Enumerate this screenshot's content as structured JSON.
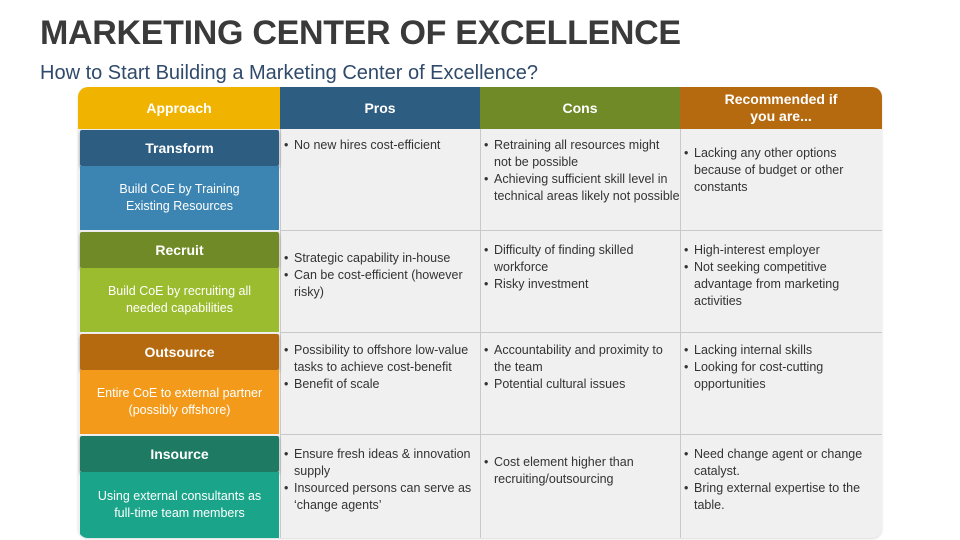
{
  "title": "MARKETING CENTER OF EXCELLENCE",
  "subtitle": "How to Start Building a Marketing Center of Excellence?",
  "headers": {
    "approach": "Approach",
    "pros": "Pros",
    "cons": "Cons",
    "recommended_line1": "Recommended if",
    "recommended_line2": "you are..."
  },
  "rows": [
    {
      "name": "Transform",
      "desc_line1": "Build CoE by Training",
      "desc_line2": "Existing Resources",
      "pros": [
        "No new hires cost-efficient"
      ],
      "cons": [
        "Retraining all resources might not be possible",
        "Achieving sufficient skill level in technical areas likely not possible"
      ],
      "recommended": [
        "Lacking any other options because of budget or other constants"
      ]
    },
    {
      "name": "Recruit",
      "desc_line1": "Build CoE by recruiting all",
      "desc_line2": "needed capabilities",
      "pros": [
        "Strategic capability in-house",
        "Can be cost-efficient (however risky)"
      ],
      "cons": [
        "Difficulty of finding skilled workforce",
        "Risky investment"
      ],
      "recommended": [
        "High-interest employer",
        "Not seeking competitive advantage from marketing activities"
      ]
    },
    {
      "name": "Outsource",
      "desc_line1": "Entire CoE to external partner",
      "desc_line2": "(possibly offshore)",
      "pros": [
        "Possibility to offshore low-value tasks to achieve cost-benefit",
        "Benefit of scale"
      ],
      "cons": [
        "Accountability and proximity to the team",
        "Potential cultural issues"
      ],
      "recommended": [
        "Lacking internal skills",
        "Looking for cost-cutting opportunities"
      ]
    },
    {
      "name": "Insource",
      "desc_line1": "Using external consultants as",
      "desc_line2": "full-time team members",
      "pros": [
        "Ensure fresh ideas & innovation supply",
        "Insourced persons can serve as ‘change agents’"
      ],
      "cons": [
        "Cost element higher than recruiting/outsourcing"
      ],
      "recommended": [
        "Need change agent or change catalyst.",
        "Bring external expertise to the table."
      ]
    }
  ],
  "colors": {
    "approach_header": "#f0b400",
    "pros_header": "#2e5d82",
    "cons_header": "#6f8a26",
    "recommended_header": "#b66a10",
    "transform_tag": "#2e5d82",
    "transform_desc": "#3c85b3",
    "recruit_tag": "#6f8a26",
    "recruit_desc": "#9bbc2e",
    "outsource_tag": "#b66a10",
    "outsource_desc": "#f39a1a",
    "insource_tag": "#1f7a63",
    "insource_desc": "#1aa58a"
  }
}
